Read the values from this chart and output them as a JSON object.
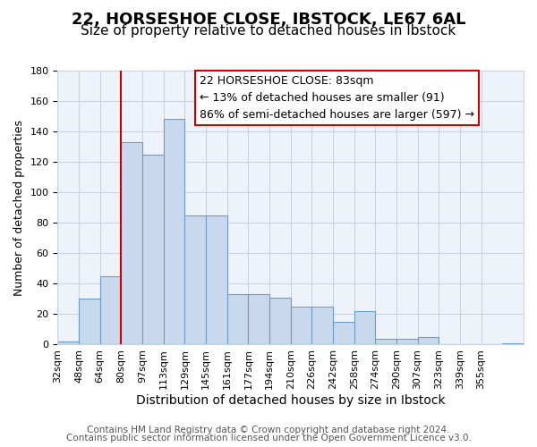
{
  "title": "22, HORSESHOE CLOSE, IBSTOCK, LE67 6AL",
  "subtitle": "Size of property relative to detached houses in Ibstock",
  "xlabel": "Distribution of detached houses by size in Ibstock",
  "ylabel": "Number of detached properties",
  "bar_values": [
    2,
    30,
    45,
    133,
    125,
    148,
    85,
    85,
    33,
    33,
    31,
    25,
    25,
    15,
    22,
    4,
    4,
    5,
    0,
    0,
    0,
    1
  ],
  "bin_labels": [
    "32sqm",
    "48sqm",
    "64sqm",
    "80sqm",
    "97sqm",
    "113sqm",
    "129sqm",
    "145sqm",
    "161sqm",
    "177sqm",
    "194sqm",
    "210sqm",
    "226sqm",
    "242sqm",
    "258sqm",
    "274sqm",
    "290sqm",
    "307sqm",
    "323sqm",
    "339sqm",
    "355sqm"
  ],
  "bar_color": "#c9d9ed",
  "bar_edge_color": "#6b9dc8",
  "grid_color": "#c8d4e3",
  "background_color": "#eef3fa",
  "vline_x": 3,
  "vline_color": "#cc0000",
  "annotation_line1": "22 HORSESHOE CLOSE: 83sqm",
  "annotation_line2": "← 13% of detached houses are smaller (91)",
  "annotation_line3": "86% of semi-detached houses are larger (597) →",
  "annotation_box_color": "#cc0000",
  "ylim": [
    0,
    180
  ],
  "yticks": [
    0,
    20,
    40,
    60,
    80,
    100,
    120,
    140,
    160,
    180
  ],
  "footer_line1": "Contains HM Land Registry data © Crown copyright and database right 2024.",
  "footer_line2": "Contains public sector information licensed under the Open Government Licence v3.0.",
  "title_fontsize": 13,
  "subtitle_fontsize": 11,
  "xlabel_fontsize": 10,
  "ylabel_fontsize": 9,
  "tick_fontsize": 8,
  "annotation_fontsize": 9,
  "footer_fontsize": 7.5
}
